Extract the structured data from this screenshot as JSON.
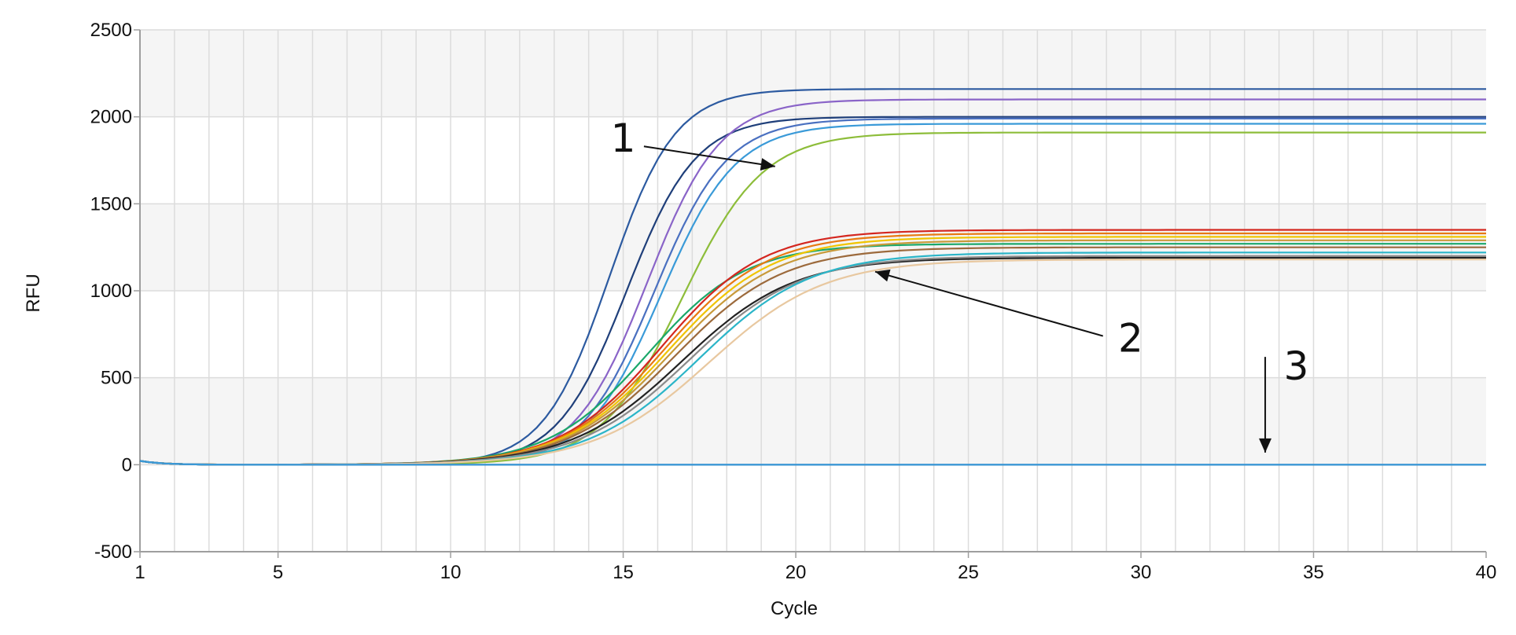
{
  "chart_data": {
    "type": "line",
    "title": "",
    "xlabel": "Cycle",
    "ylabel": "RFU",
    "xlim": [
      1,
      40
    ],
    "ylim": [
      -500,
      2500
    ],
    "xticks": [
      1,
      5,
      10,
      15,
      20,
      25,
      30,
      35,
      40
    ],
    "yticks": [
      -500,
      0,
      500,
      1000,
      1500,
      2000,
      2500
    ],
    "xtick_labels": [
      "1",
      "5",
      "10",
      "15",
      "20",
      "25",
      "30",
      "35",
      "40"
    ],
    "ytick_labels": [
      "-500",
      "0",
      "500",
      "1000",
      "1500",
      "2000",
      "2500"
    ],
    "grid": true,
    "legend": "none",
    "series": [
      {
        "group": "1",
        "color": "#2c5aa0",
        "plateau": 2160,
        "midpoint": 14.6,
        "slope": 1.05
      },
      {
        "group": "1",
        "color": "#1f3f7a",
        "plateau": 2000,
        "midpoint": 15.1,
        "slope": 1.0
      },
      {
        "group": "1",
        "color": "#8a64c8",
        "plateau": 2100,
        "midpoint": 15.7,
        "slope": 0.95
      },
      {
        "group": "1",
        "color": "#4a70c0",
        "plateau": 1990,
        "midpoint": 15.9,
        "slope": 0.95
      },
      {
        "group": "1",
        "color": "#3a9ad8",
        "plateau": 1960,
        "midpoint": 16.1,
        "slope": 0.93
      },
      {
        "group": "1",
        "color": "#8dbd3a",
        "plateau": 1910,
        "midpoint": 16.7,
        "slope": 0.85
      },
      {
        "group": "2",
        "color": "#1aa86a",
        "plateau": 1270,
        "midpoint": 15.7,
        "slope": 0.7
      },
      {
        "group": "2",
        "color": "#d4261f",
        "plateau": 1350,
        "midpoint": 16.1,
        "slope": 0.68
      },
      {
        "group": "2",
        "color": "#e87a12",
        "plateau": 1330,
        "midpoint": 16.2,
        "slope": 0.67
      },
      {
        "group": "2",
        "color": "#f0c400",
        "plateau": 1310,
        "midpoint": 16.3,
        "slope": 0.66
      },
      {
        "group": "2",
        "color": "#c89a3a",
        "plateau": 1290,
        "midpoint": 16.4,
        "slope": 0.65
      },
      {
        "group": "2",
        "color": "#9c6a3c",
        "plateau": 1250,
        "midpoint": 16.5,
        "slope": 0.64
      },
      {
        "group": "2",
        "color": "#222222",
        "plateau": 1190,
        "midpoint": 16.7,
        "slope": 0.62
      },
      {
        "group": "2",
        "color": "#8a8a8a",
        "plateau": 1200,
        "midpoint": 16.9,
        "slope": 0.62
      },
      {
        "group": "2",
        "color": "#2bb5c8",
        "plateau": 1220,
        "midpoint": 17.2,
        "slope": 0.62
      },
      {
        "group": "2",
        "color": "#e8c8a0",
        "plateau": 1180,
        "midpoint": 17.5,
        "slope": 0.6
      },
      {
        "group": "3",
        "color": "#2c5aa0",
        "plateau": 0,
        "midpoint": 20,
        "slope": 1.0
      },
      {
        "group": "3",
        "color": "#3a9ad8",
        "plateau": 0,
        "midpoint": 20,
        "slope": 1.0
      }
    ],
    "annotations": [
      {
        "label": "1",
        "text_x": 15.0,
        "text_y": 1800,
        "arrow_from": [
          15.6,
          1830
        ],
        "arrow_to": [
          19.4,
          1715
        ]
      },
      {
        "label": "2",
        "text_x": 29.7,
        "text_y": 650,
        "arrow_from": [
          28.9,
          740
        ],
        "arrow_to": [
          22.3,
          1110
        ]
      },
      {
        "label": "3",
        "text_x": 34.5,
        "text_y": 490,
        "arrow_from": [
          33.6,
          620
        ],
        "arrow_to": [
          33.6,
          70
        ]
      }
    ]
  },
  "colors": {
    "background": "#ffffff",
    "band_shade": "#f5f5f5",
    "grid": "#dcdcdc",
    "axis": "#9e9e9e",
    "text": "#111111"
  }
}
